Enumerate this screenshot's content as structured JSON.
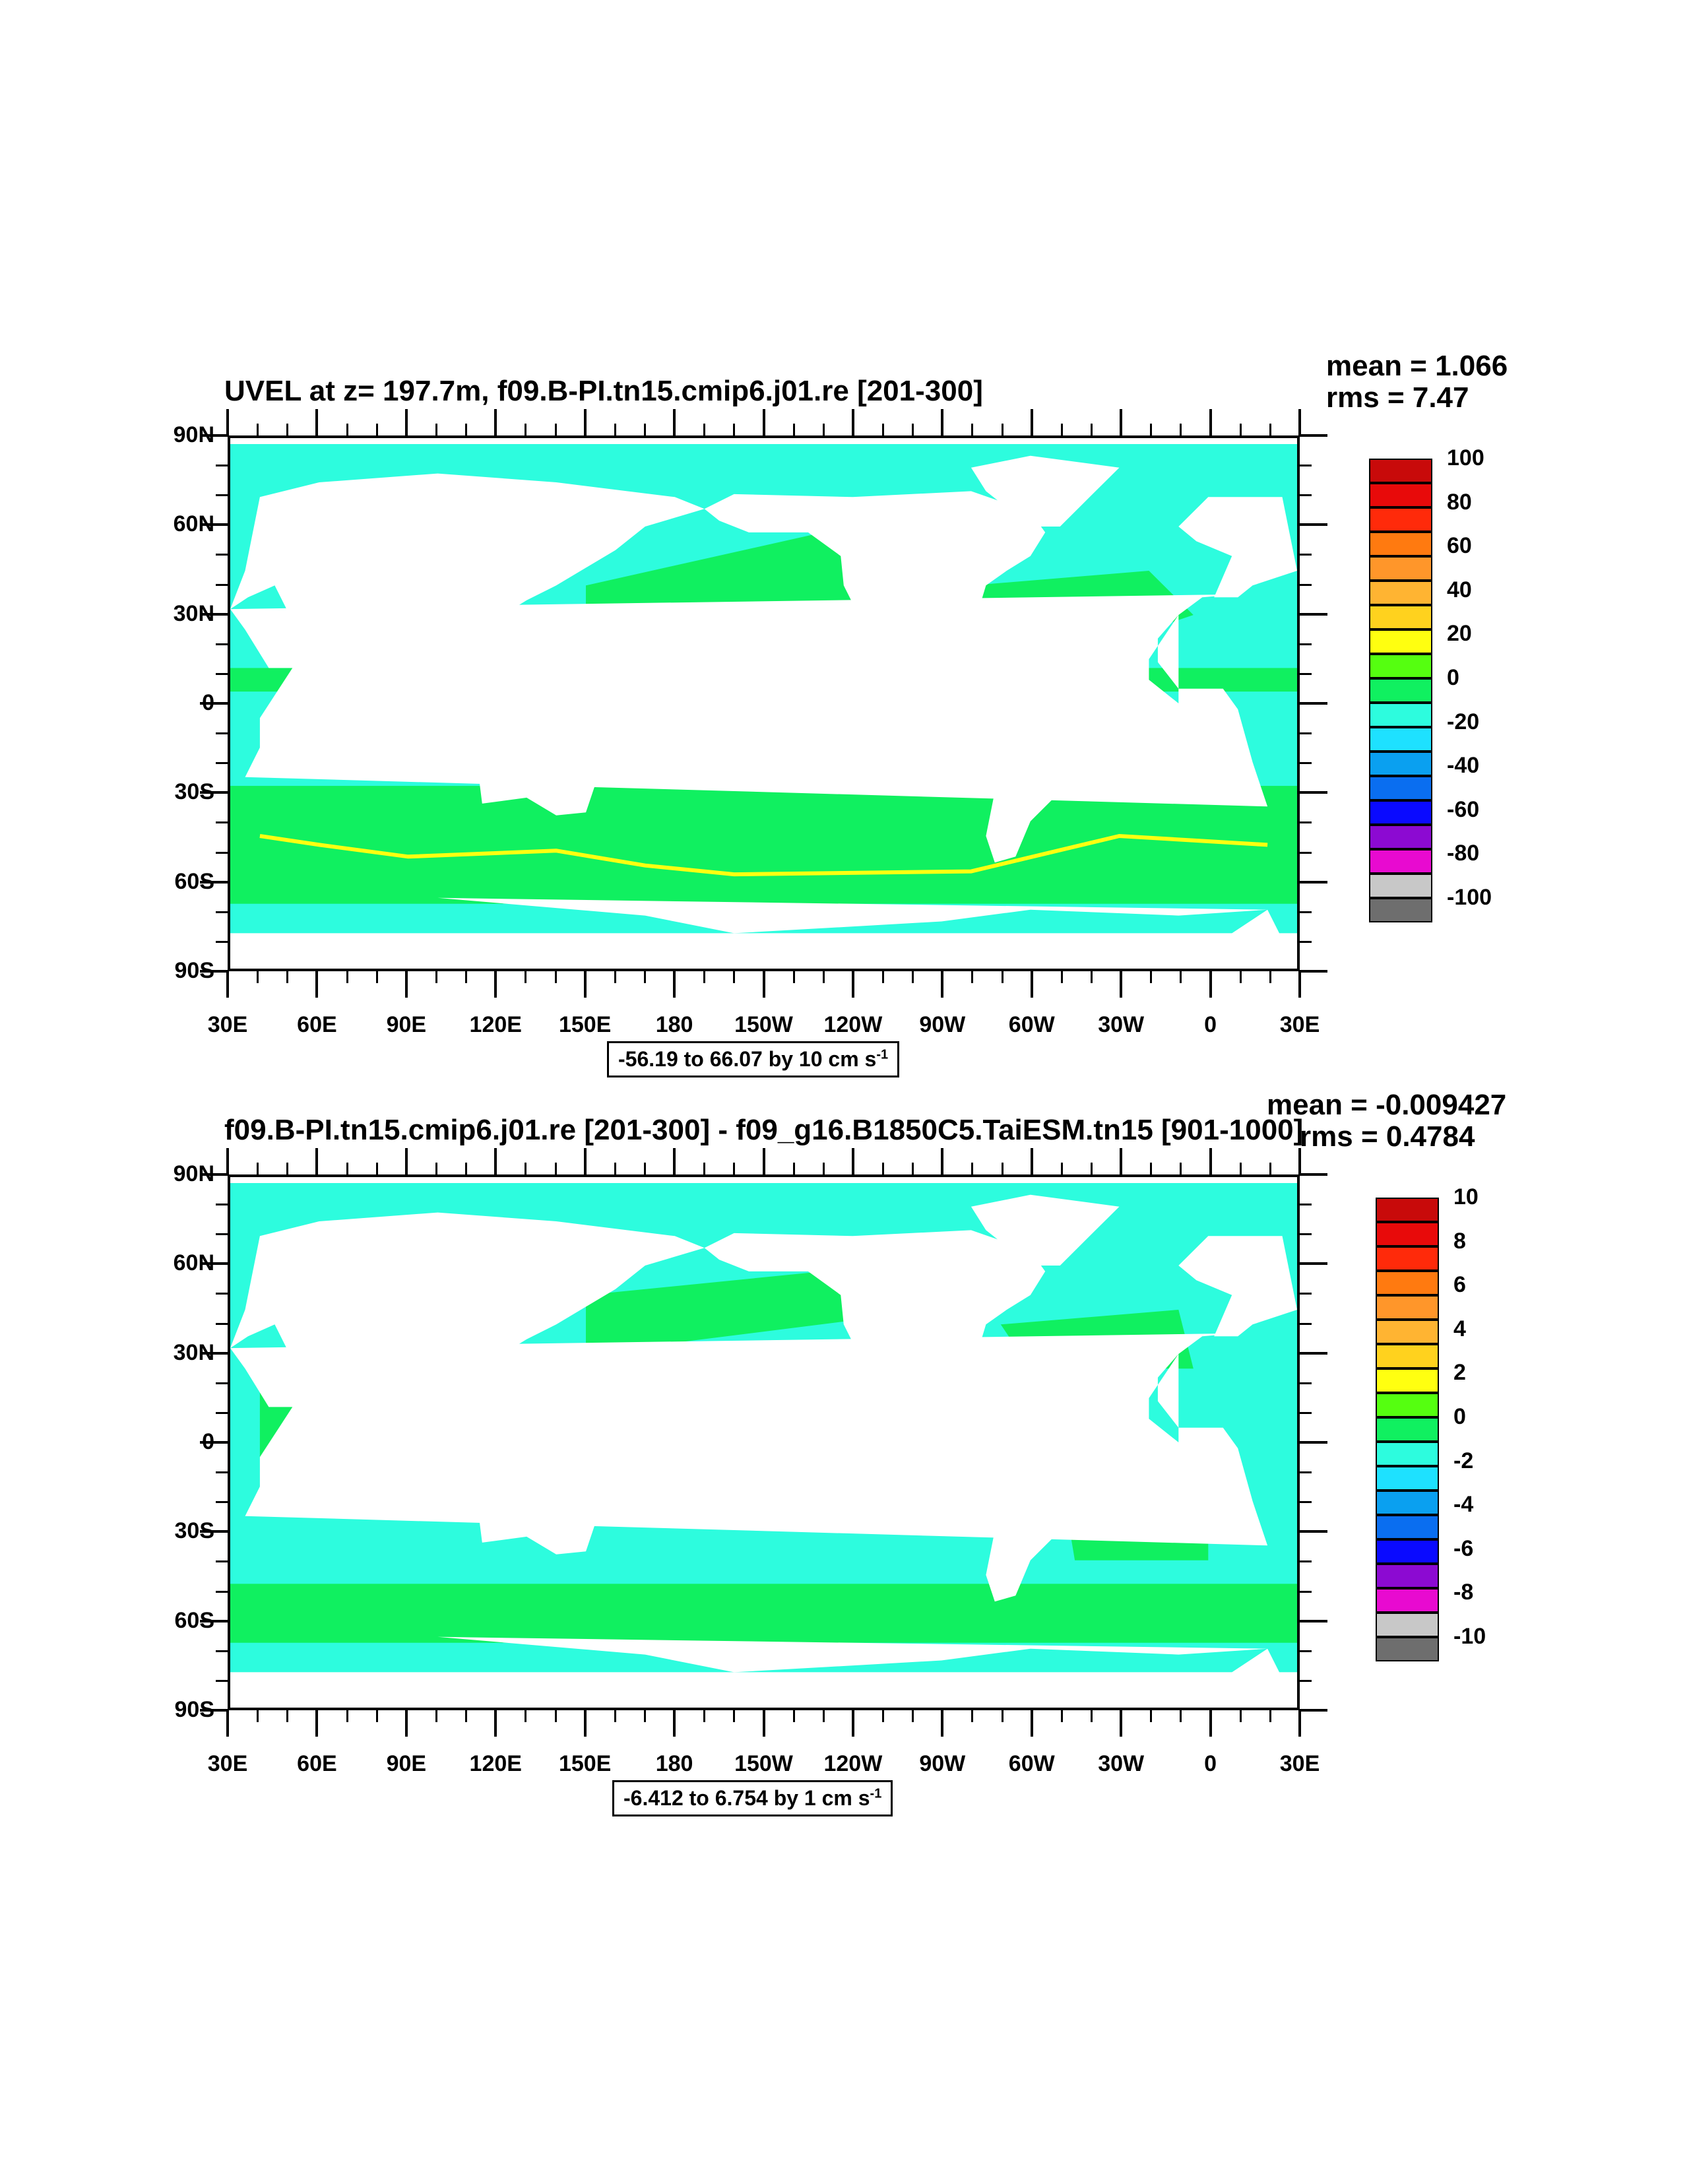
{
  "colors": {
    "levels": [
      "#6e6e6e",
      "#c8c8c8",
      "#e80ad0",
      "#8c0ad2",
      "#0a0aff",
      "#0a6ef0",
      "#0aa0f0",
      "#1ee1ff",
      "#2dfcde",
      "#10f060",
      "#55ff10",
      "#ffff10",
      "#ffd21e",
      "#ffb432",
      "#ff962a",
      "#ff7a10",
      "#ff2a0a",
      "#e80a0a",
      "#c80a0a"
    ],
    "land": "#ffffff",
    "ocean_main": "#2dfcde",
    "band_green": "#10f060",
    "jet": "#ffb432"
  },
  "panels": [
    {
      "title": "UVEL at z= 197.7m, f09.B-PI.tn15.cmip6.j01.re [201-300]",
      "mean_text": "mean = 1.066",
      "rms_text": "rms = 7.47",
      "range_text": "-56.19 to 66.07 by 10 cm s",
      "range_sup": "-1",
      "colorbar_labels": [
        "100",
        "80",
        "60",
        "40",
        "20",
        "0",
        "-20",
        "-40",
        "-60",
        "-80",
        "-100"
      ],
      "anomaly": false
    },
    {
      "title": "f09.B-PI.tn15.cmip6.j01.re [201-300] - f09_g16.B1850C5.TaiESM.tn15 [901-1000]",
      "mean_text": "mean = -0.009427",
      "rms_text": "rms = 0.4784",
      "range_text": "-6.412 to 6.754 by 1 cm s",
      "range_sup": "-1",
      "colorbar_labels": [
        "10",
        "8",
        "6",
        "4",
        "2",
        "0",
        "-2",
        "-4",
        "-6",
        "-8",
        "-10"
      ],
      "anomaly": true
    }
  ],
  "axes": {
    "lat_labels": [
      "90N",
      "60N",
      "30N",
      "0",
      "30S",
      "60S",
      "90S"
    ],
    "lon_labels": [
      "30E",
      "60E",
      "90E",
      "120E",
      "150E",
      "180",
      "150W",
      "120W",
      "90W",
      "60W",
      "30W",
      "0",
      "30E"
    ]
  }
}
